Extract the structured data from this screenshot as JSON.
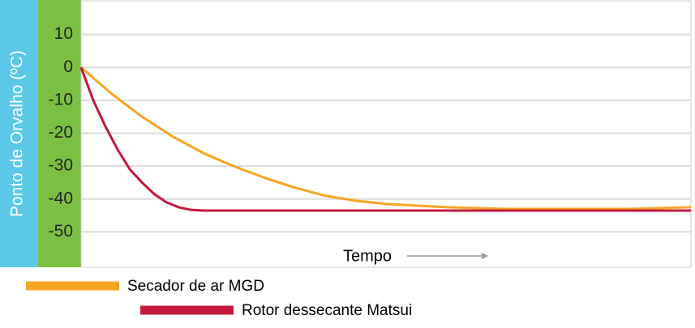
{
  "chart_data": {
    "type": "line",
    "y_label": "Ponto de Orvalho (ºC)",
    "x_label": "Tempo",
    "ylim": [
      -60,
      20
    ],
    "yticks": [
      10,
      0,
      -10,
      -20,
      -30,
      -40,
      -50
    ],
    "xlim": [
      0,
      100
    ],
    "grid": true,
    "series": [
      {
        "name": "Secador de ar MGD",
        "color": "#f5a623",
        "x": [
          0,
          5,
          10,
          15,
          20,
          25,
          30,
          35,
          40,
          45,
          50,
          55,
          60,
          70,
          80,
          90,
          100
        ],
        "values": [
          0,
          -8,
          -15,
          -21,
          -26,
          -30,
          -33.5,
          -36.5,
          -39,
          -40.5,
          -41.5,
          -42,
          -42.5,
          -43,
          -43,
          -43,
          -42.5
        ]
      },
      {
        "name": "Rotor dessecante Matsui",
        "color": "#c4183c",
        "x": [
          0,
          2,
          4,
          6,
          8,
          10,
          12,
          14,
          16,
          18,
          20,
          40,
          60,
          80,
          100
        ],
        "values": [
          0,
          -10,
          -18,
          -25,
          -31,
          -35,
          -38.5,
          -41,
          -42.5,
          -43.3,
          -43.5,
          -43.5,
          -43.5,
          -43.5,
          -43.5
        ]
      }
    ]
  }
}
